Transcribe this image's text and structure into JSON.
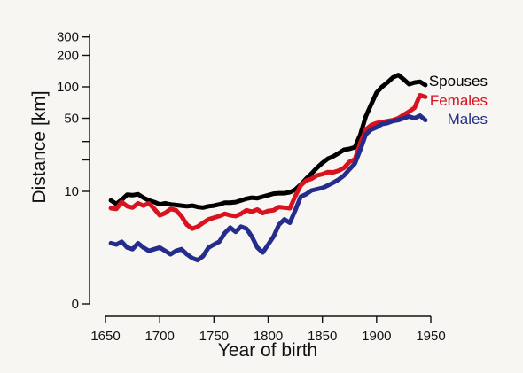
{
  "chart_data": {
    "type": "line",
    "title": "",
    "xlabel": "Year of birth",
    "ylabel": "Distance [km]",
    "xlim": [
      1650,
      1950
    ],
    "xticks": [
      "1650",
      "1700",
      "1750",
      "1800",
      "1850",
      "1900",
      "1950"
    ],
    "ytick_labels": [
      "0",
      "10",
      "50",
      "100",
      "200",
      "300"
    ],
    "y_scale": "log",
    "grid": false,
    "legend_position": "top-right",
    "series": [
      {
        "name": "Spouses",
        "color": "#000000",
        "x": [
          1655,
          1660,
          1665,
          1670,
          1675,
          1680,
          1685,
          1690,
          1695,
          1700,
          1705,
          1710,
          1715,
          1720,
          1725,
          1730,
          1735,
          1740,
          1745,
          1750,
          1755,
          1760,
          1765,
          1770,
          1775,
          1780,
          1785,
          1790,
          1795,
          1800,
          1805,
          1810,
          1815,
          1820,
          1825,
          1830,
          1835,
          1840,
          1845,
          1850,
          1855,
          1860,
          1865,
          1870,
          1875,
          1880,
          1885,
          1890,
          1895,
          1900,
          1905,
          1910,
          1915,
          1920,
          1925,
          1930,
          1935,
          1940,
          1945
        ],
        "y": [
          8.2,
          7.6,
          8.3,
          9.3,
          9.2,
          9.4,
          8.7,
          8.2,
          7.9,
          7.5,
          7.7,
          7.5,
          7.4,
          7.3,
          7.2,
          7.3,
          7.1,
          7.0,
          7.2,
          7.3,
          7.5,
          7.8,
          7.8,
          7.9,
          8.2,
          8.5,
          8.7,
          8.6,
          8.9,
          9.2,
          9.5,
          9.6,
          9.6,
          9.8,
          10.4,
          11.6,
          13.2,
          14.8,
          16.8,
          18.7,
          20.5,
          21.6,
          23.2,
          25.0,
          25.5,
          26.5,
          35,
          52,
          68,
          88,
          100,
          110,
          123,
          130,
          118,
          106,
          110,
          112,
          104
        ]
      },
      {
        "name": "Females",
        "color": "#d8121e",
        "x": [
          1655,
          1660,
          1665,
          1670,
          1675,
          1680,
          1685,
          1690,
          1695,
          1700,
          1705,
          1710,
          1715,
          1720,
          1725,
          1730,
          1735,
          1740,
          1745,
          1750,
          1755,
          1760,
          1765,
          1770,
          1775,
          1780,
          1785,
          1790,
          1795,
          1800,
          1805,
          1810,
          1815,
          1820,
          1825,
          1830,
          1835,
          1840,
          1845,
          1850,
          1855,
          1860,
          1865,
          1870,
          1875,
          1880,
          1885,
          1890,
          1895,
          1900,
          1905,
          1910,
          1915,
          1920,
          1925,
          1930,
          1935,
          1940,
          1945
        ],
        "y": [
          6.9,
          6.8,
          7.9,
          7.2,
          7.0,
          7.7,
          7.3,
          7.7,
          6.8,
          5.9,
          6.2,
          6.8,
          6.6,
          5.8,
          4.8,
          4.4,
          4.6,
          5.0,
          5.4,
          5.6,
          5.8,
          6.1,
          5.9,
          5.8,
          6.1,
          6.6,
          6.4,
          6.7,
          6.2,
          6.5,
          6.6,
          7.1,
          7.0,
          6.9,
          9.0,
          11.4,
          12.7,
          13.2,
          14.2,
          14.6,
          15.3,
          15.2,
          15.8,
          16.8,
          19.2,
          20.3,
          29,
          39,
          43,
          45,
          46,
          47,
          48,
          50,
          54,
          58,
          63,
          83,
          80
        ]
      },
      {
        "name": "Males",
        "color": "#252d8c",
        "x": [
          1655,
          1660,
          1665,
          1670,
          1675,
          1680,
          1685,
          1690,
          1695,
          1700,
          1705,
          1710,
          1715,
          1720,
          1725,
          1730,
          1735,
          1740,
          1745,
          1750,
          1755,
          1760,
          1765,
          1770,
          1775,
          1780,
          1785,
          1790,
          1795,
          1800,
          1805,
          1810,
          1815,
          1820,
          1825,
          1830,
          1835,
          1840,
          1845,
          1850,
          1855,
          1860,
          1865,
          1870,
          1875,
          1880,
          1885,
          1890,
          1895,
          1900,
          1905,
          1910,
          1915,
          1920,
          1925,
          1930,
          1935,
          1940,
          1945
        ],
        "y": [
          3.2,
          3.1,
          3.3,
          2.9,
          2.8,
          3.2,
          2.9,
          2.7,
          2.8,
          2.9,
          2.7,
          2.5,
          2.7,
          2.8,
          2.5,
          2.3,
          2.2,
          2.4,
          2.9,
          3.1,
          3.3,
          4.0,
          4.5,
          4.1,
          4.6,
          4.4,
          3.7,
          2.9,
          2.6,
          3.1,
          3.7,
          4.8,
          5.4,
          5.0,
          6.6,
          8.9,
          9.4,
          10.2,
          10.5,
          10.8,
          11.4,
          12.1,
          13.0,
          14.2,
          16.3,
          18.5,
          25,
          35,
          39,
          41,
          44,
          45,
          47,
          48,
          50,
          52,
          50,
          53,
          48
        ]
      }
    ]
  }
}
